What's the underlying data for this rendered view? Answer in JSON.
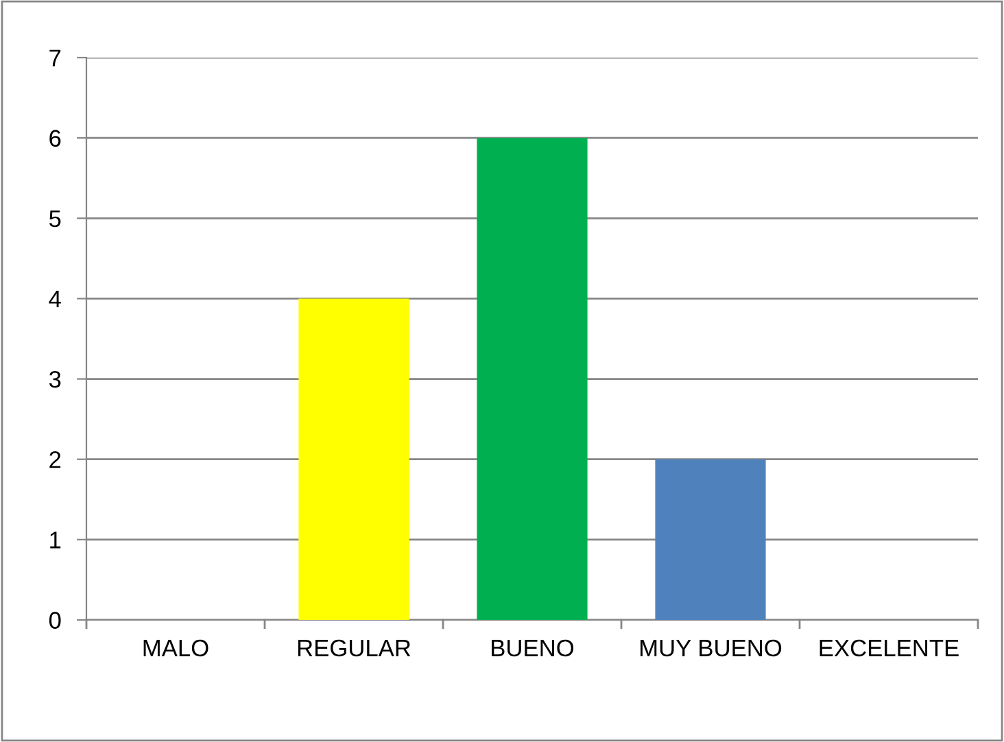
{
  "chart_data": {
    "type": "bar",
    "categories": [
      "MALO",
      "REGULAR",
      "BUENO",
      "MUY BUENO",
      "EXCELENTE"
    ],
    "values": [
      0,
      4,
      6,
      2,
      0
    ],
    "colors": [
      null,
      "#ffff00",
      "#00b050",
      "#4f81bd",
      null
    ],
    "ylim": [
      0,
      7
    ],
    "yticks": [
      0,
      1,
      2,
      3,
      4,
      5,
      6,
      7
    ],
    "grid": "y",
    "legend": false
  }
}
